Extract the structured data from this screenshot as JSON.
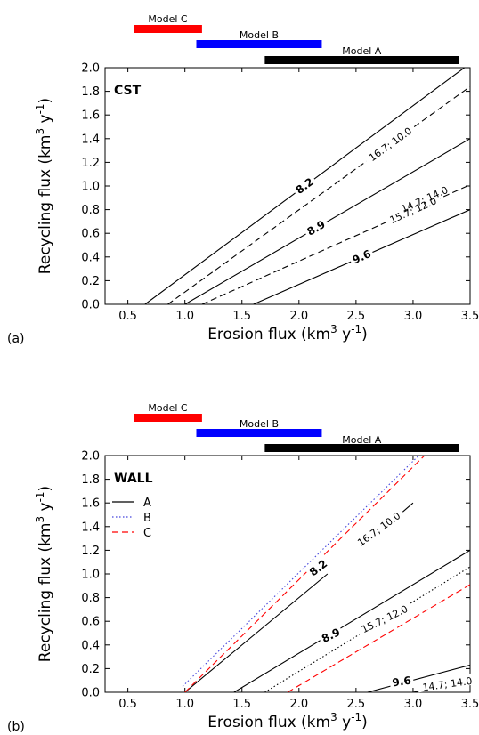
{
  "chart_data": [
    {
      "type": "line",
      "panel_label": "(a)",
      "inset_label": "CST",
      "xlabel": "Erosion flux (km",
      "xlabel_sup": "3",
      "xlabel_tail": " y",
      "xlabel_sup2": "-1",
      "xlabel_close": ")",
      "ylabel": "Recycling flux (km",
      "ylabel_sup": "3",
      "ylabel_tail": " y",
      "ylabel_sup2": "-1",
      "ylabel_close": ")",
      "xlim": [
        0.3,
        3.5
      ],
      "ylim": [
        0.0,
        2.0
      ],
      "xticks": [
        "0.5",
        "1.0",
        "1.5",
        "2.0",
        "2.5",
        "3.0",
        "3.5"
      ],
      "yticks": [
        "0.0",
        "0.2",
        "0.4",
        "0.6",
        "0.8",
        "1.0",
        "1.2",
        "1.4",
        "1.6",
        "1.8",
        "2.0"
      ],
      "range_bars": [
        {
          "label": "Model C",
          "x": [
            0.55,
            1.15
          ],
          "color": "#ff0000"
        },
        {
          "label": "Model B",
          "x": [
            1.1,
            2.2
          ],
          "color": "#0000ff"
        },
        {
          "label": "Model A",
          "x": [
            1.7,
            3.4
          ],
          "color": "#000000"
        }
      ],
      "series": [
        {
          "style": "solid",
          "color": "#000000",
          "x": [
            0.65,
            3.45
          ],
          "y": [
            0.0,
            2.0
          ],
          "label": "8.2",
          "label_bold": true,
          "label_at": 2.05
        },
        {
          "style": "dashed",
          "color": "#000000",
          "x": [
            0.85,
            3.5
          ],
          "y": [
            0.0,
            1.84
          ],
          "label": "16.7; 10.0",
          "label_bold": false,
          "label_at": 2.8
        },
        {
          "style": "solid",
          "color": "#000000",
          "x": [
            1.0,
            3.5
          ],
          "y": [
            0.0,
            1.4
          ],
          "label": "8.9",
          "label_bold": true,
          "label_at": 2.15
        },
        {
          "style": "dashed",
          "color": "#000000",
          "x": [
            1.15,
            3.5
          ],
          "y": [
            0.0,
            1.01
          ],
          "label": "15.7; 12.0",
          "label_bold": false,
          "label_at": 3.0
        },
        {
          "style": "solid",
          "color": "#000000",
          "x": [
            1.6,
            3.5
          ],
          "y": [
            0.0,
            0.8
          ],
          "label": "9.6",
          "label_bold": true,
          "label_at": 2.55
        },
        {
          "style": "none",
          "color": "#000000",
          "x": [],
          "y": [],
          "label": "14.7; 14.0",
          "label_bold": false,
          "label_at": 3.1,
          "label_on_series": 3
        }
      ]
    },
    {
      "type": "line",
      "panel_label": "(b)",
      "inset_label": "WALL",
      "xlabel": "Erosion flux (km",
      "xlabel_sup": "3",
      "xlabel_tail": " y",
      "xlabel_sup2": "-1",
      "xlabel_close": ")",
      "ylabel": "Recycling flux (km",
      "ylabel_sup": "3",
      "ylabel_tail": " y",
      "ylabel_sup2": "-1",
      "ylabel_close": ")",
      "xlim": [
        0.3,
        3.5
      ],
      "ylim": [
        0.0,
        2.0
      ],
      "xticks": [
        "0.5",
        "1.0",
        "1.5",
        "2.0",
        "2.5",
        "3.0",
        "3.5"
      ],
      "yticks": [
        "0.0",
        "0.2",
        "0.4",
        "0.6",
        "0.8",
        "1.0",
        "1.2",
        "1.4",
        "1.6",
        "1.8",
        "2.0"
      ],
      "legend": [
        {
          "name": "A",
          "style": "solid",
          "color": "#000000"
        },
        {
          "name": "B",
          "style": "dotted",
          "color": "#4444dd"
        },
        {
          "name": "C",
          "style": "dashed",
          "color": "#ff0000"
        }
      ],
      "range_bars": [
        {
          "label": "Model C",
          "x": [
            0.55,
            1.15
          ],
          "color": "#ff0000"
        },
        {
          "label": "Model B",
          "x": [
            1.1,
            2.2
          ],
          "color": "#0000ff"
        },
        {
          "label": "Model A",
          "x": [
            1.7,
            3.4
          ],
          "color": "#000000"
        }
      ],
      "series": [
        {
          "style": "solid",
          "color": "#000000",
          "x": [
            1.0,
            2.25
          ],
          "y": [
            0.0,
            1.0
          ],
          "group": "A"
        },
        {
          "style": "solid",
          "color": "#000000",
          "x": [
            2.7,
            3.0
          ],
          "y": [
            1.35,
            1.6
          ],
          "group": "A"
        },
        {
          "style": "dotted",
          "color": "#4444dd",
          "x": [
            0.98,
            3.05
          ],
          "y": [
            0.05,
            2.0
          ],
          "group": "B"
        },
        {
          "style": "dashed",
          "color": "#ff0000",
          "x": [
            1.0,
            3.1
          ],
          "y": [
            0.0,
            2.0
          ],
          "group": "C"
        },
        {
          "style": "solid",
          "color": "#000000",
          "x": [
            1.43,
            3.5
          ],
          "y": [
            0.0,
            1.2
          ],
          "group": "A"
        },
        {
          "style": "dotted",
          "color": "#000000",
          "x": [
            1.7,
            3.5
          ],
          "y": [
            0.0,
            1.06
          ],
          "group": "B"
        },
        {
          "style": "dashed",
          "color": "#ff0000",
          "x": [
            1.9,
            3.5
          ],
          "y": [
            0.0,
            0.91
          ],
          "group": "C"
        },
        {
          "style": "solid",
          "color": "#000000",
          "x": [
            2.6,
            3.5
          ],
          "y": [
            0.0,
            0.23
          ],
          "group": "A"
        },
        {
          "style": "solid",
          "color": "#000000",
          "x": [
            3.0,
            3.5
          ],
          "y": [
            0.0,
            0.11
          ],
          "group": "A"
        }
      ],
      "annotations": [
        {
          "text": "8.2",
          "bold": true,
          "x": 2.17,
          "y": 1.05,
          "angle": -38
        },
        {
          "text": "16.7; 10.0",
          "bold": false,
          "x": 2.7,
          "y": 1.38,
          "angle": -36
        },
        {
          "text": "8.9",
          "bold": true,
          "x": 2.28,
          "y": 0.48,
          "angle": -26
        },
        {
          "text": "15.7; 12.0",
          "bold": false,
          "x": 2.75,
          "y": 0.62,
          "angle": -26
        },
        {
          "text": "9.6",
          "bold": true,
          "x": 2.9,
          "y": 0.09,
          "angle": -8
        },
        {
          "text": "14.7; 14.0",
          "bold": false,
          "x": 3.3,
          "y": 0.07,
          "angle": -8
        }
      ]
    }
  ]
}
